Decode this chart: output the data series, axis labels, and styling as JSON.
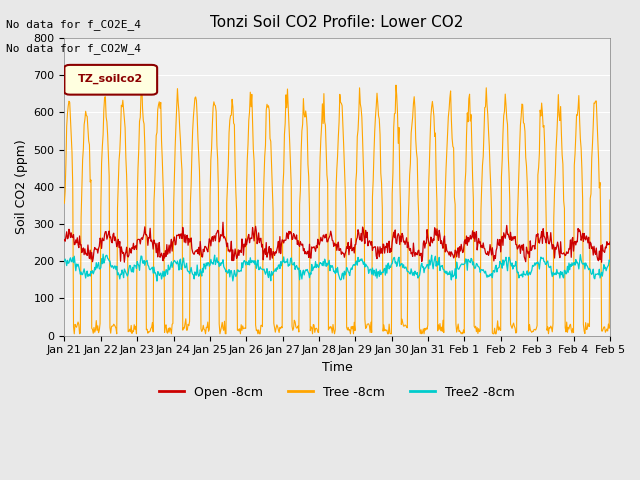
{
  "title": "Tonzi Soil CO2 Profile: Lower CO2",
  "xlabel": "Time",
  "ylabel": "Soil CO2 (ppm)",
  "ylim": [
    0,
    800
  ],
  "annotation_line1": "No data for f_CO2E_4",
  "annotation_line2": "No data for f_CO2W_4",
  "legend_label": "TZ_soilco2",
  "x_tick_labels": [
    "Jan 21",
    "Jan 22",
    "Jan 23",
    "Jan 24",
    "Jan 25",
    "Jan 26",
    "Jan 27",
    "Jan 28",
    "Jan 29",
    "Jan 30",
    "Jan 31",
    "Feb 1",
    "Feb 2",
    "Feb 3",
    "Feb 4",
    "Feb 5"
  ],
  "x_tick_positions": [
    0,
    1,
    2,
    3,
    4,
    5,
    6,
    7,
    8,
    9,
    10,
    11,
    12,
    13,
    14,
    15
  ],
  "bg_color": "#e8e8e8",
  "plot_bg_color": "#f0f0f0",
  "line_colors": {
    "open": "#cc0000",
    "tree": "#ffa500",
    "tree2": "#00cccc"
  },
  "legend_entries": [
    "Open -8cm",
    "Tree -8cm",
    "Tree2 -8cm"
  ],
  "legend_colors": [
    "#cc0000",
    "#ffa500",
    "#00cccc"
  ],
  "yticks": [
    0,
    100,
    200,
    300,
    400,
    500,
    600,
    700,
    800
  ]
}
